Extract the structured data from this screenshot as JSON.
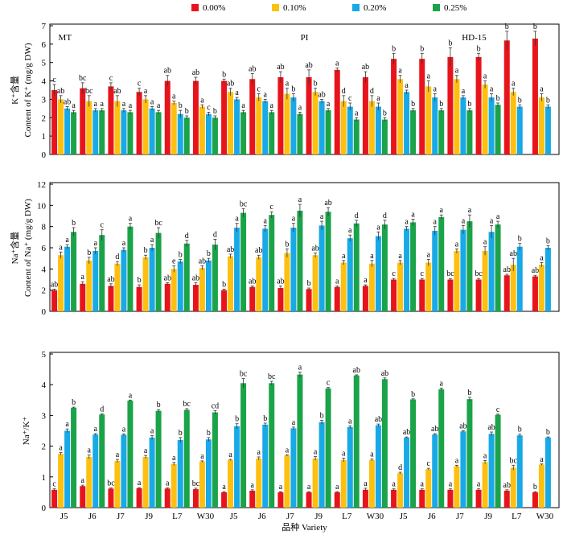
{
  "chart_data": [
    {
      "type": "bar",
      "group_labels": [
        "MT",
        "PI",
        "HD-15"
      ],
      "y_label_cn": "K⁺含量",
      "y_label": "Content of K⁺ (mg/g DW)",
      "ylim": [
        0,
        7
      ],
      "yticks": [
        0,
        1,
        2,
        3,
        4,
        5,
        6,
        7
      ],
      "series": [
        {
          "name": "0.00%",
          "color": "#e8141c",
          "values": [
            3.5,
            3.6,
            3.7,
            3.4,
            4.0,
            4.0,
            4.0,
            4.1,
            4.2,
            4.2,
            4.6,
            4.2,
            5.2,
            5.2,
            5.3,
            5.3,
            6.2,
            6.3
          ],
          "errors": [
            0.3,
            0.3,
            0.2,
            0.2,
            0.3,
            0.2,
            0.1,
            0.3,
            0.3,
            0.4,
            0.1,
            0.3,
            0.3,
            0.3,
            0.5,
            0.2,
            0.5,
            0.4
          ],
          "letters": [
            "c",
            "bc",
            "c",
            "c",
            "ab",
            "ab",
            "b",
            "ab",
            "ab",
            "ab",
            "a",
            "ab",
            "b",
            "b",
            "b",
            "b",
            "b",
            "b"
          ]
        },
        {
          "name": "0.10%",
          "color": "#fdc010",
          "values": [
            3.0,
            2.9,
            2.9,
            3.0,
            2.8,
            2.6,
            3.4,
            3.1,
            3.3,
            3.4,
            2.9,
            2.9,
            4.1,
            3.7,
            4.1,
            3.8,
            3.4,
            3.1
          ],
          "errors": [
            0.2,
            0.3,
            0.3,
            0.2,
            0.1,
            0.1,
            0.2,
            0.2,
            0.3,
            0.2,
            0.3,
            0.3,
            0.2,
            0.3,
            0.2,
            0.2,
            0.2,
            0.2
          ],
          "letters": [
            "ab",
            "bc",
            "ab",
            "a",
            "a",
            "a",
            "ab",
            "c",
            "a",
            "b",
            "d",
            "d",
            "a",
            "a",
            "a",
            "a",
            "a",
            "a"
          ]
        },
        {
          "name": "0.20%",
          "color": "#18a9e6",
          "values": [
            2.5,
            2.4,
            2.4,
            2.5,
            2.2,
            2.2,
            3.0,
            2.9,
            3.1,
            2.9,
            2.6,
            2.6,
            3.4,
            3.1,
            3.1,
            3.1,
            2.6,
            2.6
          ],
          "errors": [
            0.1,
            0.1,
            0.1,
            0.1,
            0.2,
            0.1,
            0.1,
            0.1,
            0.2,
            0.1,
            0.2,
            0.2,
            0.1,
            0.2,
            0.1,
            0.2,
            0.1,
            0.1
          ],
          "letters": [
            "ab",
            "a",
            "a",
            "a",
            "b",
            "c",
            "a",
            "a",
            "b",
            "ab",
            "c",
            "a",
            "a",
            "a",
            "a",
            "a",
            "b",
            "b"
          ]
        },
        {
          "name": "0.25%",
          "color": "#1ba34a",
          "values": [
            2.3,
            2.4,
            2.3,
            2.3,
            2.0,
            2.0,
            2.3,
            2.3,
            2.2,
            2.4,
            1.9,
            1.9,
            2.4,
            2.4,
            2.4,
            2.7,
            null,
            null
          ],
          "errors": [
            0.1,
            0.1,
            0.1,
            0.1,
            0.1,
            0.1,
            0.1,
            0.1,
            0.1,
            0.1,
            0.1,
            0.1,
            0.1,
            0.1,
            0.1,
            0.1,
            null,
            null
          ],
          "letters": [
            "a",
            "a",
            "a",
            "a",
            "b",
            "b",
            "a",
            "a",
            "a",
            "a",
            "a",
            "b",
            "b",
            "b",
            "b",
            "b",
            null,
            null
          ]
        }
      ]
    },
    {
      "type": "bar",
      "y_label_cn": "Na⁺含量",
      "y_label": "Content of Na⁺ (mg/g DW)",
      "ylim": [
        0,
        12
      ],
      "yticks": [
        0,
        2,
        4,
        6,
        8,
        10,
        12
      ],
      "series": [
        {
          "color": "#e8141c",
          "values": [
            2.0,
            2.6,
            2.4,
            2.3,
            2.6,
            2.5,
            2.0,
            2.3,
            2.2,
            2.1,
            2.3,
            2.4,
            3.0,
            3.0,
            3.0,
            3.0,
            3.4,
            3.3
          ],
          "errors": [
            0.1,
            0.2,
            0.2,
            0.2,
            0.1,
            0.2,
            0.1,
            0.1,
            0.2,
            0.1,
            0.1,
            0.1,
            0.1,
            0.1,
            0.1,
            0.1,
            0.1,
            0.1
          ],
          "letters": [
            "ab",
            "a",
            "ab",
            "b",
            "ab",
            "ab",
            "b",
            "ab",
            "ab",
            "b",
            "a",
            "a",
            "c",
            "c",
            "bc",
            "bc",
            "ab",
            "ab"
          ]
        },
        {
          "color": "#fdc010",
          "values": [
            5.3,
            4.8,
            4.5,
            5.1,
            4.0,
            4.1,
            5.2,
            5.1,
            5.5,
            5.3,
            4.6,
            4.5,
            4.6,
            4.6,
            5.7,
            5.7,
            4.4,
            4.4
          ],
          "errors": [
            0.3,
            0.3,
            0.2,
            0.2,
            0.3,
            0.2,
            0.2,
            0.2,
            0.4,
            0.2,
            0.2,
            0.3,
            0.2,
            0.3,
            0.2,
            0.4,
            0.6,
            0.2
          ],
          "letters": [
            "a",
            "b",
            "d",
            "b",
            "e",
            "ab",
            "ab",
            "ab",
            "b",
            "ab",
            "a",
            "a",
            "a",
            "a",
            "a",
            "a",
            "ab",
            "a"
          ]
        },
        {
          "color": "#18a9e6",
          "values": [
            6.1,
            5.7,
            5.8,
            6.0,
            4.7,
            4.8,
            7.9,
            7.8,
            7.9,
            8.1,
            6.9,
            7.1,
            7.8,
            7.6,
            7.7,
            7.5,
            6.1,
            6.0
          ],
          "errors": [
            0.2,
            0.3,
            0.2,
            0.3,
            0.2,
            0.2,
            0.4,
            0.3,
            0.4,
            0.4,
            0.3,
            0.4,
            0.2,
            0.4,
            0.4,
            0.6,
            0.3,
            0.2
          ],
          "letters": [
            "a",
            "a",
            "a",
            "a",
            "b",
            "b",
            "a",
            "a",
            "a",
            "a",
            "a",
            "a",
            "a",
            "a",
            "a",
            "a",
            "b",
            "b"
          ]
        },
        {
          "color": "#1ba34a",
          "values": [
            7.5,
            7.2,
            8.0,
            7.4,
            6.4,
            6.3,
            9.3,
            9.1,
            9.5,
            9.4,
            8.3,
            8.2,
            8.4,
            8.9,
            8.5,
            8.2,
            null,
            null
          ],
          "errors": [
            0.4,
            0.5,
            0.3,
            0.5,
            0.3,
            0.5,
            0.4,
            0.3,
            0.6,
            0.4,
            0.3,
            0.4,
            0.3,
            0.2,
            0.6,
            0.3,
            null,
            null
          ],
          "letters": [
            "b",
            "c",
            "a",
            "bc",
            "d",
            "d",
            "bc",
            "c",
            "a",
            "ab",
            "d",
            "d",
            "a",
            "a",
            "a",
            "a",
            null,
            null
          ]
        }
      ]
    },
    {
      "type": "bar",
      "y_label": "Na⁺/K⁺",
      "x_label": "品种 Variety",
      "categories": [
        "J5",
        "J6",
        "J7",
        "J9",
        "L7",
        "W30",
        "J5",
        "J6",
        "J7",
        "J9",
        "L7",
        "W30",
        "J5",
        "J6",
        "J7",
        "J9",
        "L7",
        "W30"
      ],
      "ylim": [
        0,
        5
      ],
      "yticks": [
        0,
        1,
        2,
        3,
        4,
        5
      ],
      "series": [
        {
          "color": "#e8141c",
          "values": [
            0.58,
            0.7,
            0.62,
            0.63,
            0.62,
            0.6,
            0.5,
            0.55,
            0.5,
            0.5,
            0.5,
            0.58,
            0.58,
            0.58,
            0.58,
            0.58,
            0.55,
            0.5
          ],
          "errors": [
            0.03,
            0.03,
            0.02,
            0.02,
            0.02,
            0.03,
            0.02,
            0.03,
            0.02,
            0.02,
            0.02,
            0.05,
            0.03,
            0.03,
            0.03,
            0.03,
            0.03,
            0.02
          ],
          "letters": [
            "c",
            "a",
            "bc",
            "a",
            "a",
            "bc",
            "a",
            "a",
            "a",
            "a",
            "a",
            "a",
            "a",
            "a",
            "a",
            "a",
            "ab",
            "b"
          ]
        },
        {
          "color": "#fdc010",
          "values": [
            1.75,
            1.65,
            1.52,
            1.65,
            1.42,
            1.5,
            1.55,
            1.6,
            1.7,
            1.6,
            1.55,
            1.55,
            1.12,
            1.25,
            1.35,
            1.48,
            1.3,
            1.4
          ],
          "errors": [
            0.04,
            0.06,
            0.05,
            0.05,
            0.05,
            0.02,
            0.02,
            0.05,
            0.02,
            0.06,
            0.06,
            0.03,
            0.03,
            0.03,
            0.03,
            0.05,
            0.08,
            0.02
          ],
          "letters": [
            "a",
            "a",
            "a",
            "a",
            "a",
            "a",
            "a",
            "a",
            "a",
            "a",
            "a",
            "a",
            "d",
            "c",
            "a",
            "a",
            "bc",
            "a"
          ]
        },
        {
          "color": "#18a9e6",
          "values": [
            2.5,
            2.38,
            2.37,
            2.28,
            2.2,
            2.22,
            2.65,
            2.7,
            2.58,
            2.78,
            2.62,
            2.68,
            2.28,
            2.38,
            2.48,
            2.4,
            2.35,
            2.28
          ],
          "errors": [
            0.06,
            0.03,
            0.03,
            0.06,
            0.08,
            0.06,
            0.08,
            0.05,
            0.04,
            0.06,
            0.04,
            0.04,
            0.02,
            0.03,
            0.02,
            0.06,
            0.04,
            0.02
          ],
          "letters": [
            "a",
            "a",
            "a",
            "a",
            "b",
            "b",
            "b",
            "b",
            "a",
            "b",
            "a",
            "ab",
            "ab",
            "ab",
            "ab",
            "ab",
            "b",
            "b"
          ]
        },
        {
          "color": "#1ba34a",
          "values": [
            3.25,
            3.03,
            3.48,
            3.15,
            3.18,
            3.1,
            4.05,
            4.05,
            4.33,
            3.88,
            4.3,
            4.18,
            3.52,
            3.85,
            3.53,
            3.02,
            null,
            null
          ],
          "errors": [
            0.02,
            0.02,
            0.02,
            0.04,
            0.04,
            0.06,
            0.15,
            0.06,
            0.08,
            0.03,
            0.02,
            0.04,
            0.02,
            0.04,
            0.06,
            0.02,
            null,
            null
          ],
          "letters": [
            "b",
            "d",
            "a",
            "b",
            "bc",
            "cd",
            "bc",
            "bc",
            "a",
            "c",
            "ab",
            "ab",
            "b",
            "a",
            "b",
            "c",
            null,
            null
          ]
        }
      ]
    }
  ]
}
